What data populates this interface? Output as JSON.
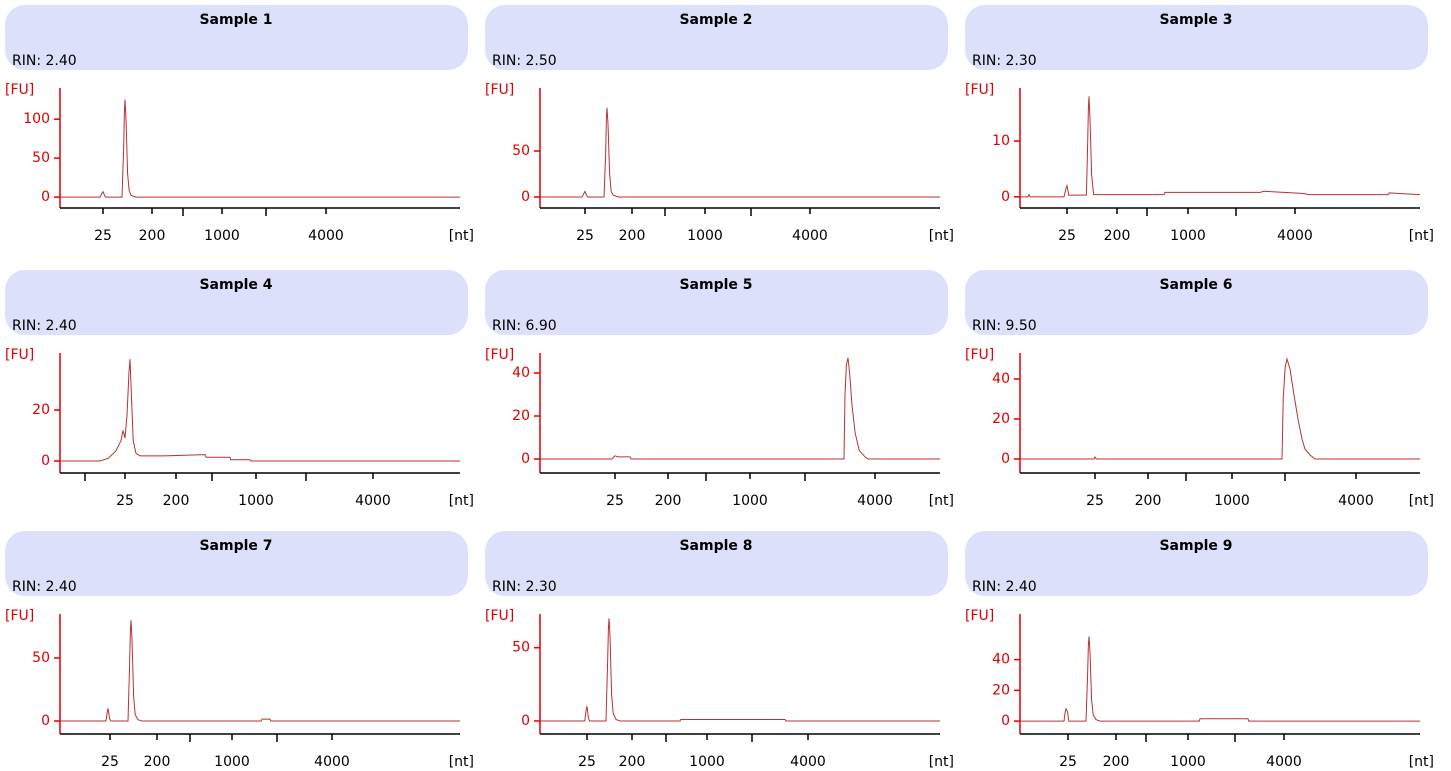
{
  "chart_data": [
    {
      "type": "line",
      "title": "Sample 1",
      "subtitle": "RIN: 2.40",
      "ylabel": "[FU]",
      "xlabel": "[nt]",
      "color": "#b83232",
      "x": [
        0,
        10,
        10.5,
        10.75,
        11.25,
        11.5,
        15.5,
        15.9,
        16.1,
        16.25,
        16.5,
        16.9,
        17.3,
        17.8,
        19,
        100
      ],
      "values": [
        0,
        0,
        5,
        7,
        1,
        0,
        0,
        60,
        110,
        125,
        100,
        30,
        8,
        2,
        0,
        0
      ],
      "xlim": [
        0,
        100
      ],
      "ylim": [
        -14,
        140
      ],
      "yticks": [
        0,
        50,
        100
      ],
      "xticks": [
        {
          "value": 10.75,
          "label": "25"
        },
        {
          "value": 23,
          "label": "200"
        },
        {
          "value": 40.5,
          "label": "1000"
        },
        {
          "value": 66.5,
          "label": "4000"
        }
      ],
      "minor_xticks": [
        30.75,
        51.5
      ]
    },
    {
      "type": "line",
      "title": "Sample 2",
      "subtitle": "RIN: 2.50",
      "ylabel": "[FU]",
      "xlabel": "[nt]",
      "color": "#b83232",
      "x": [
        0,
        10.5,
        11,
        11.25,
        11.75,
        12,
        16,
        16.4,
        16.6,
        16.75,
        17,
        17.4,
        17.8,
        18.3,
        19.5,
        100
      ],
      "values": [
        0,
        0,
        4,
        6,
        1,
        0,
        0,
        45,
        85,
        97,
        80,
        25,
        6,
        2,
        0,
        0
      ],
      "xlim": [
        0,
        100
      ],
      "ylim": [
        -12,
        118.5
      ],
      "yticks": [
        0,
        50
      ],
      "xticks": [
        {
          "value": 11.25,
          "label": "25"
        },
        {
          "value": 23,
          "label": "200"
        },
        {
          "value": 41.25,
          "label": "1000"
        },
        {
          "value": 67.5,
          "label": "4000"
        }
      ],
      "minor_xticks": [
        31.25,
        52.75
      ]
    },
    {
      "type": "line",
      "title": "Sample 3",
      "subtitle": "RIN: 2.30",
      "ylabel": "[FU]",
      "xlabel": "[nt]",
      "color": "#b83232",
      "x": [
        0,
        2,
        2.25,
        2.6,
        11,
        11.5,
        11.75,
        12.2,
        16.6,
        16.9,
        17.1,
        17.25,
        17.5,
        17.9,
        18.4,
        36,
        36.25,
        60,
        61,
        71,
        72,
        92,
        92.3,
        100
      ],
      "values": [
        0,
        0,
        0.4,
        0,
        0,
        1.5,
        2,
        0.3,
        0.3,
        9,
        16,
        18,
        14,
        4,
        0.4,
        0.4,
        0.8,
        0.8,
        1,
        0.6,
        0.4,
        0.4,
        0.7,
        0.4
      ],
      "xlim": [
        0,
        100
      ],
      "ylim": [
        -2,
        19.5
      ],
      "yticks": [
        0,
        10
      ],
      "xticks": [
        {
          "value": 11.75,
          "label": "25"
        },
        {
          "value": 24.25,
          "label": "200"
        },
        {
          "value": 42,
          "label": "1000"
        },
        {
          "value": 68.75,
          "label": "4000"
        }
      ],
      "minor_xticks": [
        31.75,
        54
      ]
    },
    {
      "type": "line",
      "title": "Sample 4",
      "subtitle": "RIN: 2.40",
      "ylabel": "[FU]",
      "xlabel": "[nt]",
      "color": "#b83232",
      "x": [
        0,
        10,
        12,
        14,
        15.25,
        15.75,
        16.25,
        16.75,
        17.25,
        17.5,
        17.8,
        18.3,
        19,
        20,
        26,
        36.25,
        36.5,
        42.5,
        42.7,
        47.5,
        47.7,
        100
      ],
      "values": [
        0,
        0,
        1,
        4,
        8,
        12,
        9,
        18,
        35,
        40,
        28,
        8,
        3,
        2,
        2,
        2.5,
        1.5,
        1.5,
        0.5,
        0.5,
        0,
        0
      ],
      "xlim": [
        0,
        100
      ],
      "ylim": [
        -4.7,
        42.4
      ],
      "yticks": [
        0,
        20
      ],
      "xticks": [
        {
          "value": 16.25,
          "label": "25"
        },
        {
          "value": 29,
          "label": "200"
        },
        {
          "value": 49,
          "label": "1000"
        },
        {
          "value": 78.25,
          "label": "4000"
        }
      ],
      "minor_xticks": [
        6.25,
        38,
        61.5
      ]
    },
    {
      "type": "line",
      "title": "Sample 5",
      "subtitle": "RIN: 6.90",
      "ylabel": "[FU]",
      "xlabel": "[nt]",
      "color": "#b83232",
      "x": [
        0,
        18,
        18.75,
        19.5,
        22.5,
        22.8,
        76,
        76.25,
        76.6,
        77,
        77.4,
        78,
        78.8,
        79.8,
        81.25,
        82,
        100
      ],
      "values": [
        0,
        0,
        1.5,
        1,
        1,
        0,
        0,
        30,
        44,
        47,
        40,
        25,
        12,
        4,
        1,
        0,
        0
      ],
      "xlim": [
        0,
        100
      ],
      "ylim": [
        -6.5,
        49.3
      ],
      "yticks": [
        0,
        20,
        40
      ],
      "xticks": [
        {
          "value": 18.75,
          "label": "25"
        },
        {
          "value": 32,
          "label": "200"
        },
        {
          "value": 52.5,
          "label": "1000"
        },
        {
          "value": 83.75,
          "label": "4000"
        }
      ],
      "minor_xticks": [
        41.5,
        66.25
      ]
    },
    {
      "type": "line",
      "title": "Sample 6",
      "subtitle": "RIN: 9.50",
      "ylabel": "[FU]",
      "xlabel": "[nt]",
      "color": "#b83232",
      "x": [
        0,
        18.5,
        18.75,
        19.1,
        65.5,
        65.8,
        66.3,
        66.75,
        67.5,
        68.5,
        69.5,
        70.5,
        71.25,
        72.5,
        73.75,
        100
      ],
      "values": [
        0,
        0,
        1,
        0,
        0,
        30,
        46,
        50,
        45,
        32,
        20,
        10,
        5,
        2,
        0,
        0
      ],
      "xlim": [
        0,
        100
      ],
      "ylim": [
        -7,
        53
      ],
      "yticks": [
        0,
        20,
        40
      ],
      "xticks": [
        {
          "value": 18.75,
          "label": "25"
        },
        {
          "value": 32,
          "label": "200"
        },
        {
          "value": 53,
          "label": "1000"
        },
        {
          "value": 84,
          "label": "4000"
        }
      ],
      "minor_xticks": [
        41.5,
        66.25
      ]
    },
    {
      "type": "line",
      "title": "Sample 7",
      "subtitle": "RIN: 2.40",
      "ylabel": "[FU]",
      "xlabel": "[nt]",
      "color": "#b83232",
      "x": [
        0,
        11.5,
        11.8,
        12,
        12.4,
        12.7,
        17,
        17.4,
        17.6,
        17.75,
        18,
        18.4,
        18.8,
        19.5,
        20.5,
        50.3,
        50.5,
        52.5,
        52.7,
        100
      ],
      "values": [
        0,
        0,
        7,
        10,
        2,
        0,
        0,
        45,
        72,
        80,
        65,
        20,
        5,
        1,
        0,
        0,
        1.5,
        1.5,
        0,
        0
      ],
      "xlim": [
        0,
        100
      ],
      "ylim": [
        -10.3,
        84.9
      ],
      "yticks": [
        0,
        50
      ],
      "xticks": [
        {
          "value": 12.5,
          "label": "25"
        },
        {
          "value": 24.25,
          "label": "200"
        },
        {
          "value": 43,
          "label": "1000"
        },
        {
          "value": 68,
          "label": "4000"
        }
      ],
      "minor_xticks": [
        32.5,
        54.25
      ]
    },
    {
      "type": "line",
      "title": "Sample 8",
      "subtitle": "RIN: 2.30",
      "ylabel": "[FU]",
      "xlabel": "[nt]",
      "color": "#b83232",
      "x": [
        0,
        11.2,
        11.5,
        11.75,
        12.1,
        12.4,
        16.5,
        16.9,
        17.1,
        17.25,
        17.5,
        17.9,
        18.3,
        19,
        20,
        35,
        35.2,
        61.25,
        61.5,
        100
      ],
      "values": [
        0,
        0,
        7,
        10,
        2,
        0,
        0,
        40,
        63,
        70,
        58,
        18,
        5,
        1,
        0,
        0,
        1,
        1,
        0,
        0
      ],
      "xlim": [
        0,
        100
      ],
      "ylim": [
        -8.9,
        73
      ],
      "yticks": [
        0,
        50
      ],
      "xticks": [
        {
          "value": 11.75,
          "label": "25"
        },
        {
          "value": 23,
          "label": "200"
        },
        {
          "value": 41.75,
          "label": "1000"
        },
        {
          "value": 67,
          "label": "4000"
        }
      ],
      "minor_xticks": [
        31.5,
        53
      ]
    },
    {
      "type": "line",
      "title": "Sample 9",
      "subtitle": "RIN: 2.40",
      "ylabel": "[FU]",
      "xlabel": "[nt]",
      "color": "#b83232",
      "x": [
        0,
        11,
        11.3,
        11.5,
        11.9,
        12.2,
        16.5,
        16.9,
        17.1,
        17.25,
        17.5,
        17.9,
        18.3,
        19,
        20,
        44.8,
        45,
        57,
        57.2,
        100
      ],
      "values": [
        0,
        0,
        6,
        8,
        6,
        0,
        0,
        30,
        50,
        55,
        45,
        14,
        4,
        1,
        0,
        0,
        1.5,
        1.5,
        0,
        0
      ],
      "xlim": [
        0,
        100
      ],
      "ylim": [
        -8.4,
        69.7
      ],
      "yticks": [
        0,
        20,
        40
      ],
      "xticks": [
        {
          "value": 12,
          "label": "25"
        },
        {
          "value": 24,
          "label": "200"
        },
        {
          "value": 42,
          "label": "1000"
        },
        {
          "value": 66,
          "label": "4000"
        }
      ],
      "minor_xticks": [
        31.5,
        53.75
      ]
    }
  ]
}
